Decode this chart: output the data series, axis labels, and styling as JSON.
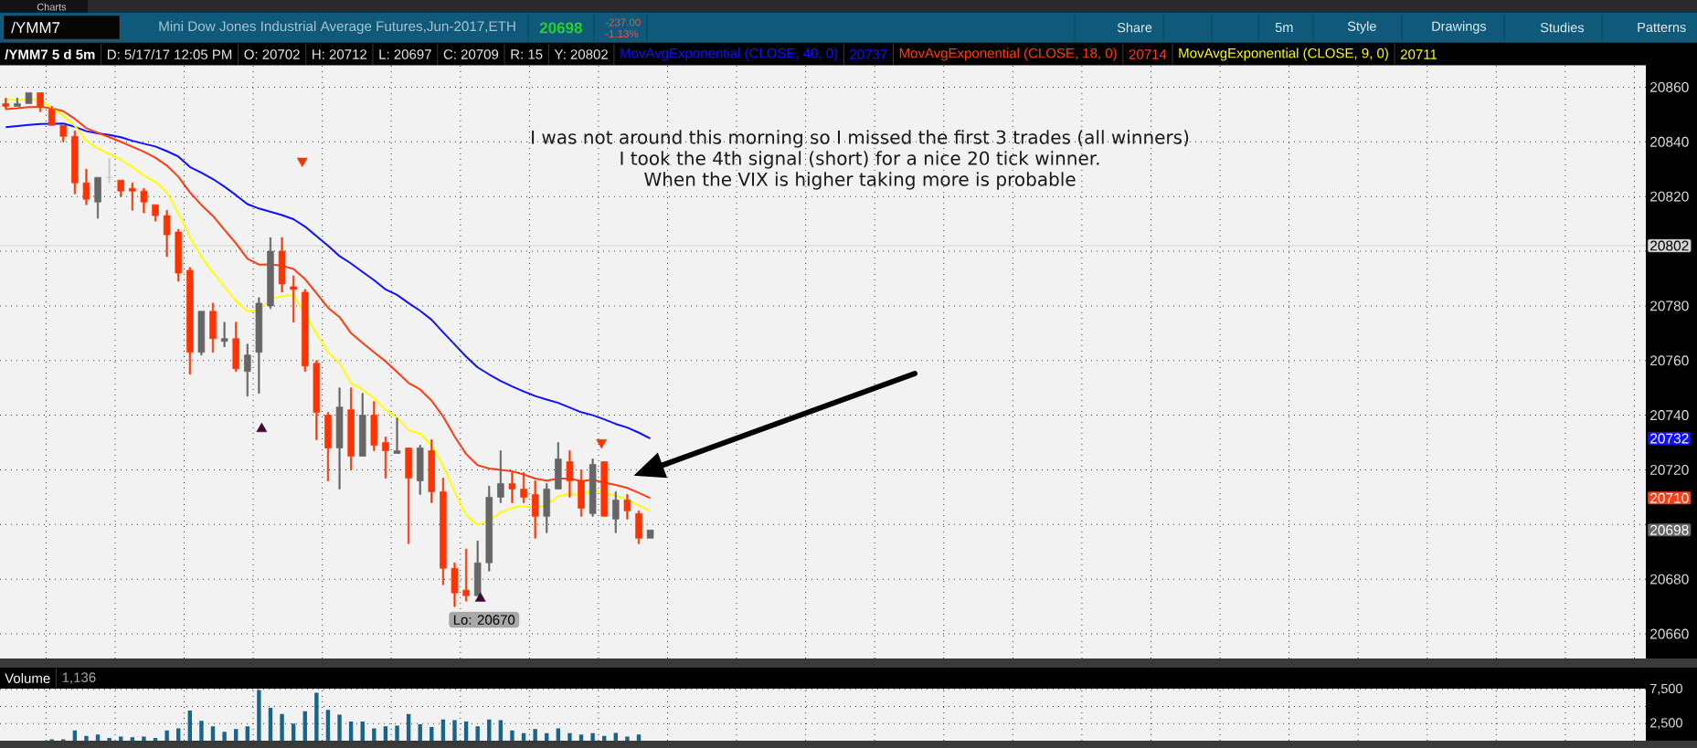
{
  "chart_data": [
    {
      "type": "candlestick",
      "title": "Mini Dow Jones Industrial Average Futures,Jun-2017,ETH",
      "subtitle": "/YMM7 5 d 5m",
      "categories": [
        null,
        null,
        null,
        null,
        null,
        null,
        null,
        null,
        null,
        null,
        null,
        null,
        null,
        null,
        null,
        null,
        null,
        null,
        null,
        null,
        null,
        null,
        null,
        null,
        null,
        null,
        null,
        null,
        null,
        null,
        null,
        null,
        null,
        null,
        null,
        null,
        null,
        null,
        null,
        null,
        null,
        null,
        null,
        null,
        null,
        null,
        null,
        null,
        null,
        null,
        null,
        null,
        null,
        null,
        null,
        null,
        null,
        null,
        null,
        null,
        null,
        null,
        null,
        null,
        null,
        null,
        null,
        null,
        null,
        null,
        null,
        null,
        null,
        null,
        null,
        null,
        null,
        null,
        null,
        null,
        null,
        null,
        null,
        null,
        null,
        null,
        null,
        null,
        null,
        null,
        null,
        null,
        null,
        null,
        null,
        null,
        null,
        null,
        null,
        null,
        null,
        null,
        null,
        null,
        null,
        null,
        null,
        null,
        null,
        null,
        null,
        null,
        null,
        null,
        null,
        null,
        null,
        null,
        null,
        null,
        null,
        null,
        null,
        null,
        null,
        null,
        null,
        null,
        null,
        null,
        null,
        null,
        null,
        null,
        null,
        null,
        null,
        null,
        null,
        null,
        null,
        null,
        null
      ],
      "ohlc": [
        [
          20854,
          20856,
          20852,
          20853
        ],
        [
          20853,
          20856,
          20853,
          20854
        ],
        [
          20854,
          20858,
          20854,
          20858
        ],
        [
          20858,
          20858,
          20851,
          20853
        ],
        [
          20852,
          20853,
          20846,
          20846
        ],
        [
          20846,
          20846,
          20840,
          20842
        ],
        [
          20842,
          20844,
          20821,
          20825
        ],
        [
          20825,
          20830,
          20817,
          20819
        ],
        [
          20818,
          20827,
          20812,
          20827
        ],
        [
          20827,
          20834,
          20825,
          20827
        ],
        [
          20826,
          20826,
          20820,
          20822
        ],
        [
          20823,
          20825,
          20815,
          20822
        ],
        [
          20822,
          20823,
          20814,
          20818
        ],
        [
          20817,
          20817,
          20811,
          20813
        ],
        [
          20813,
          20815,
          20798,
          20806
        ],
        [
          20807,
          20808,
          20789,
          20792
        ],
        [
          20793,
          20794,
          20755,
          20763
        ],
        [
          20763,
          20778,
          20762,
          20778
        ],
        [
          20778,
          20781,
          20763,
          20768
        ],
        [
          20767,
          20774,
          20765,
          20768
        ],
        [
          20768,
          20774,
          20756,
          20757
        ],
        [
          20756,
          20766,
          20747,
          20762
        ],
        [
          20763,
          20783,
          20748,
          20781
        ],
        [
          20780,
          20805,
          20779,
          20800
        ],
        [
          20800,
          20805,
          20785,
          20788
        ],
        [
          20787,
          20791,
          20774,
          20786
        ],
        [
          20785,
          20786,
          20756,
          20758
        ],
        [
          20759,
          20760,
          20731,
          20741
        ],
        [
          20740,
          20741,
          20716,
          20728
        ],
        [
          20728,
          20750,
          20713,
          20743
        ],
        [
          20742,
          20750,
          20720,
          20725
        ],
        [
          20725,
          20748,
          20725,
          20740
        ],
        [
          20740,
          20745,
          20727,
          20729
        ],
        [
          20730,
          20732,
          20717,
          20727
        ],
        [
          20726,
          20739,
          20726,
          20727
        ],
        [
          20728,
          20728,
          20693,
          20717
        ],
        [
          20716,
          20729,
          20711,
          20728
        ],
        [
          20727,
          20731,
          20708,
          20712
        ],
        [
          20712,
          20717,
          20678,
          20684
        ],
        [
          20684,
          20686,
          20670,
          20675
        ],
        [
          20676,
          20691,
          20672,
          20674
        ],
        [
          20674,
          20694,
          20674,
          20686
        ],
        [
          20686,
          20714,
          20683,
          20710
        ],
        [
          20710,
          20727,
          20708,
          20715
        ],
        [
          20715,
          20719,
          20708,
          20713
        ],
        [
          20713,
          20719,
          20708,
          20710
        ],
        [
          20711,
          20716,
          20695,
          20703
        ],
        [
          20703,
          20715,
          20697,
          20713
        ],
        [
          20713,
          20730,
          20713,
          20724
        ],
        [
          20723,
          20727,
          20710,
          20716
        ],
        [
          20716,
          20720,
          20703,
          20706
        ],
        [
          20704,
          20724,
          20703,
          20722
        ],
        [
          20723,
          20723,
          20703,
          20703
        ],
        [
          20702,
          20712,
          20697,
          20709
        ],
        [
          20709,
          20711,
          20702,
          20705
        ],
        [
          20704,
          20705,
          20693,
          20695
        ],
        [
          20695,
          20698,
          20695,
          20698
        ],
        null,
        null,
        null,
        null,
        null,
        null,
        null,
        null,
        null,
        null,
        null,
        null,
        null,
        null,
        null,
        null,
        null,
        null,
        null,
        null,
        null,
        null,
        null,
        null,
        null,
        null,
        null,
        null,
        null,
        null,
        null,
        null,
        null,
        null,
        null,
        null,
        null,
        null,
        null,
        null,
        null,
        null,
        null,
        null,
        null,
        null,
        null,
        null,
        null,
        null,
        null,
        null,
        null,
        null,
        null,
        null,
        null,
        null,
        null,
        null,
        null,
        null,
        null,
        null,
        null,
        null,
        null,
        null,
        null,
        null,
        null,
        null,
        null,
        null,
        null,
        null,
        null,
        null,
        null,
        null,
        null,
        null,
        null,
        null,
        null,
        null
      ],
      "colors": [
        "#ff3300",
        "#666666",
        "#666666",
        "#ff3300",
        "#ff3300",
        "#ff3300",
        "#ff3300",
        "#ff3300",
        "#666666",
        "#cccccc",
        "#ff3300",
        "#ff3300",
        "#ff3300",
        "#ff3300",
        "#ff3300",
        "#ff3300",
        "#ff3300",
        "#666666",
        "#ff3300",
        "#666666",
        "#ff3300",
        "#666666",
        "#666666",
        "#666666",
        "#ff3300",
        "#ff3300",
        "#ff3300",
        "#ff3300",
        "#ff3300",
        "#666666",
        "#ff3300",
        "#666666",
        "#ff3300",
        "#ff3300",
        "#666666",
        "#ff3300",
        "#666666",
        "#ff3300",
        "#ff3300",
        "#ff3300",
        "#ff3300",
        "#666666",
        "#666666",
        "#666666",
        "#ff3300",
        "#ff3300",
        "#ff3300",
        "#666666",
        "#666666",
        "#ff3300",
        "#ff3300",
        "#666666",
        "#ff3300",
        "#666666",
        "#ff3300",
        "#ff3300",
        "#666666",
        null,
        null,
        null,
        null,
        null,
        null,
        null,
        null,
        null,
        null,
        null,
        null,
        null,
        null,
        null,
        null,
        null,
        null,
        null,
        null,
        null,
        null,
        null,
        null,
        null,
        null,
        null,
        null,
        null,
        null,
        null,
        null,
        null,
        null,
        null,
        null,
        null,
        null,
        null,
        null,
        null,
        null,
        null,
        null,
        null,
        null,
        null,
        null,
        null,
        null,
        null,
        null,
        null,
        null,
        null,
        null,
        null,
        null,
        null,
        null,
        null,
        null,
        null,
        null,
        null,
        null,
        null,
        null,
        null,
        null,
        null,
        null,
        null,
        null,
        null,
        null,
        null,
        null,
        null,
        null,
        null,
        null,
        null,
        null,
        null,
        null
      ],
      "series": [
        {
          "name": "MovAvgExponential (CLOSE, 40, 0)",
          "type": "line",
          "color": "#1010ff",
          "values": [
            20845.4,
            20845.8,
            20846.2,
            20846.5,
            null,
            20846.7,
            20845.5,
            20843.9,
            20843.1,
            20842.5,
            20841.7,
            20840.4,
            20839.3,
            20838.3,
            20836.6,
            20834.6,
            20830.8,
            20828.7,
            20826.4,
            20823.6,
            20820.5,
            20817.2,
            20815.6,
            20814.4,
            20813.2,
            20811.7,
            20809.0,
            20805.5,
            20802.0,
            20798.2,
            20795.5,
            20792.4,
            20789.4,
            20786.0,
            20784.0,
            20781.0,
            20778.2,
            20774.9,
            20770.3,
            20765.9,
            20761.4,
            20757.5,
            20754.9,
            20752.5,
            20750.5,
            20748.7,
            20747.0,
            20745.7,
            20744.5,
            20742.8,
            20741.1,
            20740.0,
            20738.5,
            20736.8,
            20735.5,
            20733.6,
            20731.5,
            null,
            null,
            null,
            null,
            null,
            null,
            null,
            null,
            null,
            null,
            null,
            null,
            null,
            null,
            null,
            null,
            null,
            null,
            null,
            null,
            null,
            null,
            null,
            null,
            null,
            null,
            null,
            null,
            null,
            null,
            null,
            null,
            null,
            null,
            null,
            null,
            null,
            null,
            null,
            null,
            null,
            null,
            null,
            null,
            null,
            null,
            null,
            null,
            null,
            null,
            null,
            null,
            null,
            null,
            null,
            null,
            null,
            null,
            null,
            null,
            null,
            null,
            null,
            null,
            null,
            null,
            null,
            null,
            null,
            null,
            null,
            null,
            null,
            null,
            null,
            null,
            null,
            null,
            null,
            null,
            null,
            null,
            null,
            null,
            null,
            null
          ]
        },
        {
          "name": "MovAvgExponential (CLOSE, 18, 0)",
          "type": "line",
          "color": "#ff3c14",
          "values": [
            20852.0,
            20852.3,
            20852.7,
            20852.8,
            20852.3,
            20851.2,
            20848.4,
            20845.0,
            20843.3,
            20841.7,
            20840.0,
            20838.2,
            20836.4,
            20834.2,
            20831.3,
            20827.2,
            20821.5,
            20816.9,
            20812.9,
            20807.8,
            20802.9,
            20797.2,
            20795.1,
            20795.2,
            20794.7,
            20793.5,
            20789.8,
            20784.6,
            20779.3,
            20775.9,
            20770.0,
            20766.4,
            20763.0,
            20759.7,
            20755.8,
            20751.8,
            20749.4,
            20745.3,
            20739.5,
            20732.2,
            20725.8,
            20721.7,
            20720.5,
            20720.0,
            20719.5,
            20718.3,
            20716.8,
            20716.1,
            20716.8,
            20716.8,
            20715.9,
            20716.4,
            20715.3,
            20714.5,
            20713.4,
            20711.6,
            20709.7,
            null,
            null,
            null,
            null,
            null,
            null,
            null,
            null,
            null,
            null,
            null,
            null,
            null,
            null,
            null,
            null,
            null,
            null,
            null,
            null,
            null,
            null,
            null,
            null,
            null,
            null,
            null,
            null,
            null,
            null,
            null,
            null,
            null,
            null,
            null,
            null,
            null,
            null,
            null,
            null,
            null,
            null,
            null,
            null,
            null,
            null,
            null,
            null,
            null,
            null,
            null,
            null,
            null,
            null,
            null,
            null,
            null,
            null,
            null,
            null,
            null,
            null,
            null,
            null,
            null,
            null,
            null,
            null,
            null,
            null,
            null,
            null,
            null,
            null,
            null,
            null,
            null,
            null,
            null,
            null,
            null,
            null,
            null,
            null,
            null,
            null
          ]
        },
        {
          "name": "MovAvgExponential (CLOSE, 9, 0)",
          "type": "line",
          "color": "#ffff00",
          "values": [
            20855.5,
            20855.3,
            20855.7,
            20855.1,
            20852.4,
            20849.5,
            20845.9,
            20840.4,
            20837.6,
            20835.5,
            20833.5,
            20830.8,
            20827.7,
            20825.4,
            20821.5,
            20813.9,
            20805.2,
            20797.9,
            20792.2,
            20787.1,
            20781.8,
            20778.0,
            20778.5,
            20782.5,
            20783.6,
            20784.0,
            null,
            20770.0,
            20763.0,
            20759.1,
            20751.8,
            20749.4,
            20746.2,
            20742.0,
            20739.0,
            20734.5,
            20733.2,
            20729.1,
            20721.5,
            20712.0,
            20703.5,
            20699.8,
            20701.5,
            20704.4,
            20706.1,
            20706.8,
            20706.0,
            20707.3,
            20710.3,
            20711.4,
            20710.5,
            20713.1,
            20711.2,
            20710.6,
            20709.1,
            20706.9,
            20704.9,
            null,
            null,
            null,
            null,
            null,
            null,
            null,
            null,
            null,
            null,
            null,
            null,
            null,
            null,
            null,
            null,
            null,
            null,
            null,
            null,
            null,
            null,
            null,
            null,
            null,
            null,
            null,
            null,
            null,
            null,
            null,
            null,
            null,
            null,
            null,
            null,
            null,
            null,
            null,
            null,
            null,
            null,
            null,
            null,
            null,
            null,
            null,
            null,
            null,
            null,
            null,
            null,
            null,
            null,
            null,
            null,
            null,
            null,
            null,
            null,
            null,
            null,
            null,
            null,
            null,
            null,
            null,
            null,
            null,
            null,
            null,
            null,
            null,
            null,
            null,
            null,
            null,
            null,
            null,
            null,
            null,
            null,
            null,
            null,
            null,
            null
          ]
        },
        {
          "type": "scatter",
          "color": "#ff3300",
          "marker": "triangle",
          "values": [
            null,
            null,
            null,
            null,
            null,
            null,
            null,
            null,
            null,
            null,
            null,
            null,
            null,
            null,
            null,
            null,
            null,
            null,
            null,
            null,
            null,
            null,
            null,
            null,
            null,
            null,
            20833,
            null,
            null,
            null,
            null,
            null,
            null,
            null,
            null,
            null,
            null,
            null,
            null,
            null,
            null,
            null,
            null,
            null,
            null,
            null,
            null,
            null,
            null,
            null,
            null,
            null,
            20730,
            null,
            null,
            null,
            null,
            null,
            null,
            null,
            null,
            null,
            null,
            null,
            null,
            null,
            null,
            null,
            null,
            null,
            null,
            null,
            null,
            null,
            null,
            null,
            null,
            null,
            null,
            null,
            null,
            null,
            null,
            null,
            null,
            null,
            null,
            null,
            null,
            null,
            null,
            null,
            null,
            null,
            null,
            null,
            null,
            null,
            null,
            null,
            null,
            null,
            null,
            null,
            null,
            null,
            null,
            null,
            null,
            null,
            null,
            null,
            null,
            null,
            null,
            null,
            null,
            null,
            null,
            null,
            null,
            null,
            null,
            null,
            null,
            null,
            null,
            null,
            null,
            null,
            null,
            null,
            null,
            null,
            null,
            null,
            null,
            null,
            null,
            null,
            null,
            null,
            null
          ]
        },
        {
          "type": "scatter",
          "color": "#3b0a35",
          "marker": "triangle",
          "values": [
            null,
            null,
            null,
            null,
            null,
            null,
            null,
            null,
            null,
            null,
            null,
            null,
            null,
            null,
            null,
            null,
            null,
            null,
            null,
            null,
            null,
            null,
            20735,
            null,
            null,
            null,
            null,
            null,
            null,
            null,
            null,
            null,
            null,
            null,
            null,
            null,
            null,
            null,
            null,
            null,
            null,
            20673,
            null,
            null,
            null,
            null,
            null,
            null,
            null,
            null,
            null,
            null,
            null,
            null,
            null,
            null,
            null,
            null,
            null,
            null,
            null,
            null,
            null,
            null,
            null,
            null,
            null,
            null,
            null,
            null,
            null,
            null,
            null,
            null,
            null,
            null,
            null,
            null,
            null,
            null,
            null,
            null,
            null,
            null,
            null,
            null,
            null,
            null,
            null,
            null,
            null,
            null,
            null,
            null,
            null,
            null,
            null,
            null,
            null,
            null,
            null,
            null,
            null,
            null,
            null,
            null,
            null,
            null,
            null,
            null,
            null,
            null,
            null,
            null,
            null,
            null,
            null,
            null,
            null,
            null,
            null,
            null,
            null,
            null,
            null,
            null,
            null,
            null,
            null,
            null,
            null,
            null,
            null,
            null,
            null,
            null,
            null,
            null,
            null,
            null,
            null,
            null,
            null
          ]
        }
      ],
      "ylim": [
        20651,
        20868
      ],
      "yticks": [
        20660,
        20680,
        {
          "value": 20700,
          "label": null
        },
        20720,
        20740,
        20760,
        20780,
        {
          "value": 20800,
          "label": null
        },
        20820,
        20840,
        20860
      ],
      "grid": true,
      "legend": "top",
      "ref_lines": [
        {
          "axis": "y",
          "value": 20802,
          "label": "20802",
          "color": "#d4d4d4"
        }
      ],
      "annotations": [
        "Charts",
        "/YMM7",
        "20698",
        "-237.00",
        "-1.13%",
        "Share",
        "5m",
        "Style",
        "Drawings",
        "Studies",
        "Patterns",
        "D: 5/17/17 12:05 PM",
        "O: 20702",
        "H: 20712",
        "L: 20697",
        "C: 20709",
        "R: 15",
        "Y: 20802",
        "20737",
        "20714",
        "20711",
        "I was not around this morning so I missed the first 3 trades (all winners)",
        "I took the 4th signal (short) for a nice 20 tick winner.",
        "When the VIX is higher taking more is probable",
        "Lo: 20670",
        "20732",
        "20710",
        "20698"
      ]
    },
    {
      "type": "bar",
      "title": "Volume",
      "categories": [
        null,
        null,
        null,
        null,
        null,
        null,
        null,
        null,
        null,
        null,
        null,
        null,
        null,
        null,
        null,
        null,
        null,
        null,
        null,
        null,
        null,
        null,
        null,
        null,
        null,
        null,
        null,
        null,
        null,
        null,
        null,
        null,
        null,
        null,
        null,
        null,
        null,
        null,
        null,
        null,
        null,
        null,
        null,
        null,
        null,
        null,
        null,
        null,
        null,
        null,
        null,
        null,
        null,
        null,
        null,
        null,
        null,
        null,
        null,
        null,
        null,
        null,
        null,
        null,
        null,
        null,
        null,
        null,
        null,
        null,
        null,
        null,
        null,
        null,
        null,
        null,
        null,
        null,
        null,
        null,
        null,
        null,
        null,
        null,
        null,
        null,
        null,
        null,
        null,
        null,
        null,
        null,
        null,
        null,
        null,
        null,
        null,
        null,
        null,
        null,
        null,
        null,
        null,
        null,
        null,
        null,
        null,
        null,
        null,
        null,
        null,
        null,
        null,
        null,
        null,
        null,
        null,
        null,
        null,
        null,
        null,
        null,
        null,
        null,
        null,
        null,
        null,
        null,
        null,
        null,
        null,
        null,
        null,
        null,
        null,
        null,
        null,
        null,
        null,
        null,
        null,
        null,
        null
      ],
      "values": [
        null,
        null,
        null,
        null,
        200,
        200,
        1500,
        700,
        900,
        400,
        600,
        500,
        600,
        400,
        1500,
        1800,
        4400,
        2900,
        2100,
        1300,
        1700,
        2100,
        7400,
        4800,
        3900,
        2500,
        4300,
        7000,
        4500,
        3800,
        2800,
        2800,
        1800,
        2100,
        2200,
        3900,
        2400,
        2000,
        3100,
        3000,
        2800,
        2100,
        3100,
        3000,
        1500,
        1100,
        1700,
        1100,
        1800,
        1100,
        900,
        1100,
        700,
        1136,
        600,
        900,
        null,
        null,
        null,
        null,
        null,
        null,
        null,
        null,
        null,
        null,
        null,
        null,
        null,
        null,
        null,
        null,
        null,
        null,
        null,
        null,
        null,
        null,
        null,
        null,
        null,
        null,
        null,
        null,
        null,
        null,
        null,
        null,
        null,
        null,
        null,
        null,
        null,
        null,
        null,
        null,
        null,
        null,
        null,
        null,
        null,
        null,
        null,
        null,
        null,
        null,
        null,
        null,
        null,
        null,
        null,
        null,
        null,
        null,
        null,
        null,
        null,
        null,
        null,
        null,
        null,
        null,
        null,
        null,
        null,
        null,
        null,
        null,
        null,
        null,
        null,
        null,
        null,
        null,
        null,
        null,
        null,
        null,
        null,
        null,
        null,
        null,
        null
      ],
      "color": "#17658c",
      "ylim": [
        0,
        7600
      ],
      "yticks": [
        {
          "value": 2500,
          "label": "2,500"
        },
        {
          "value": 5000,
          "label": null
        },
        {
          "value": 7500,
          "label": "7,500"
        }
      ],
      "grid": true,
      "annotations": [
        "1,136"
      ]
    }
  ]
}
